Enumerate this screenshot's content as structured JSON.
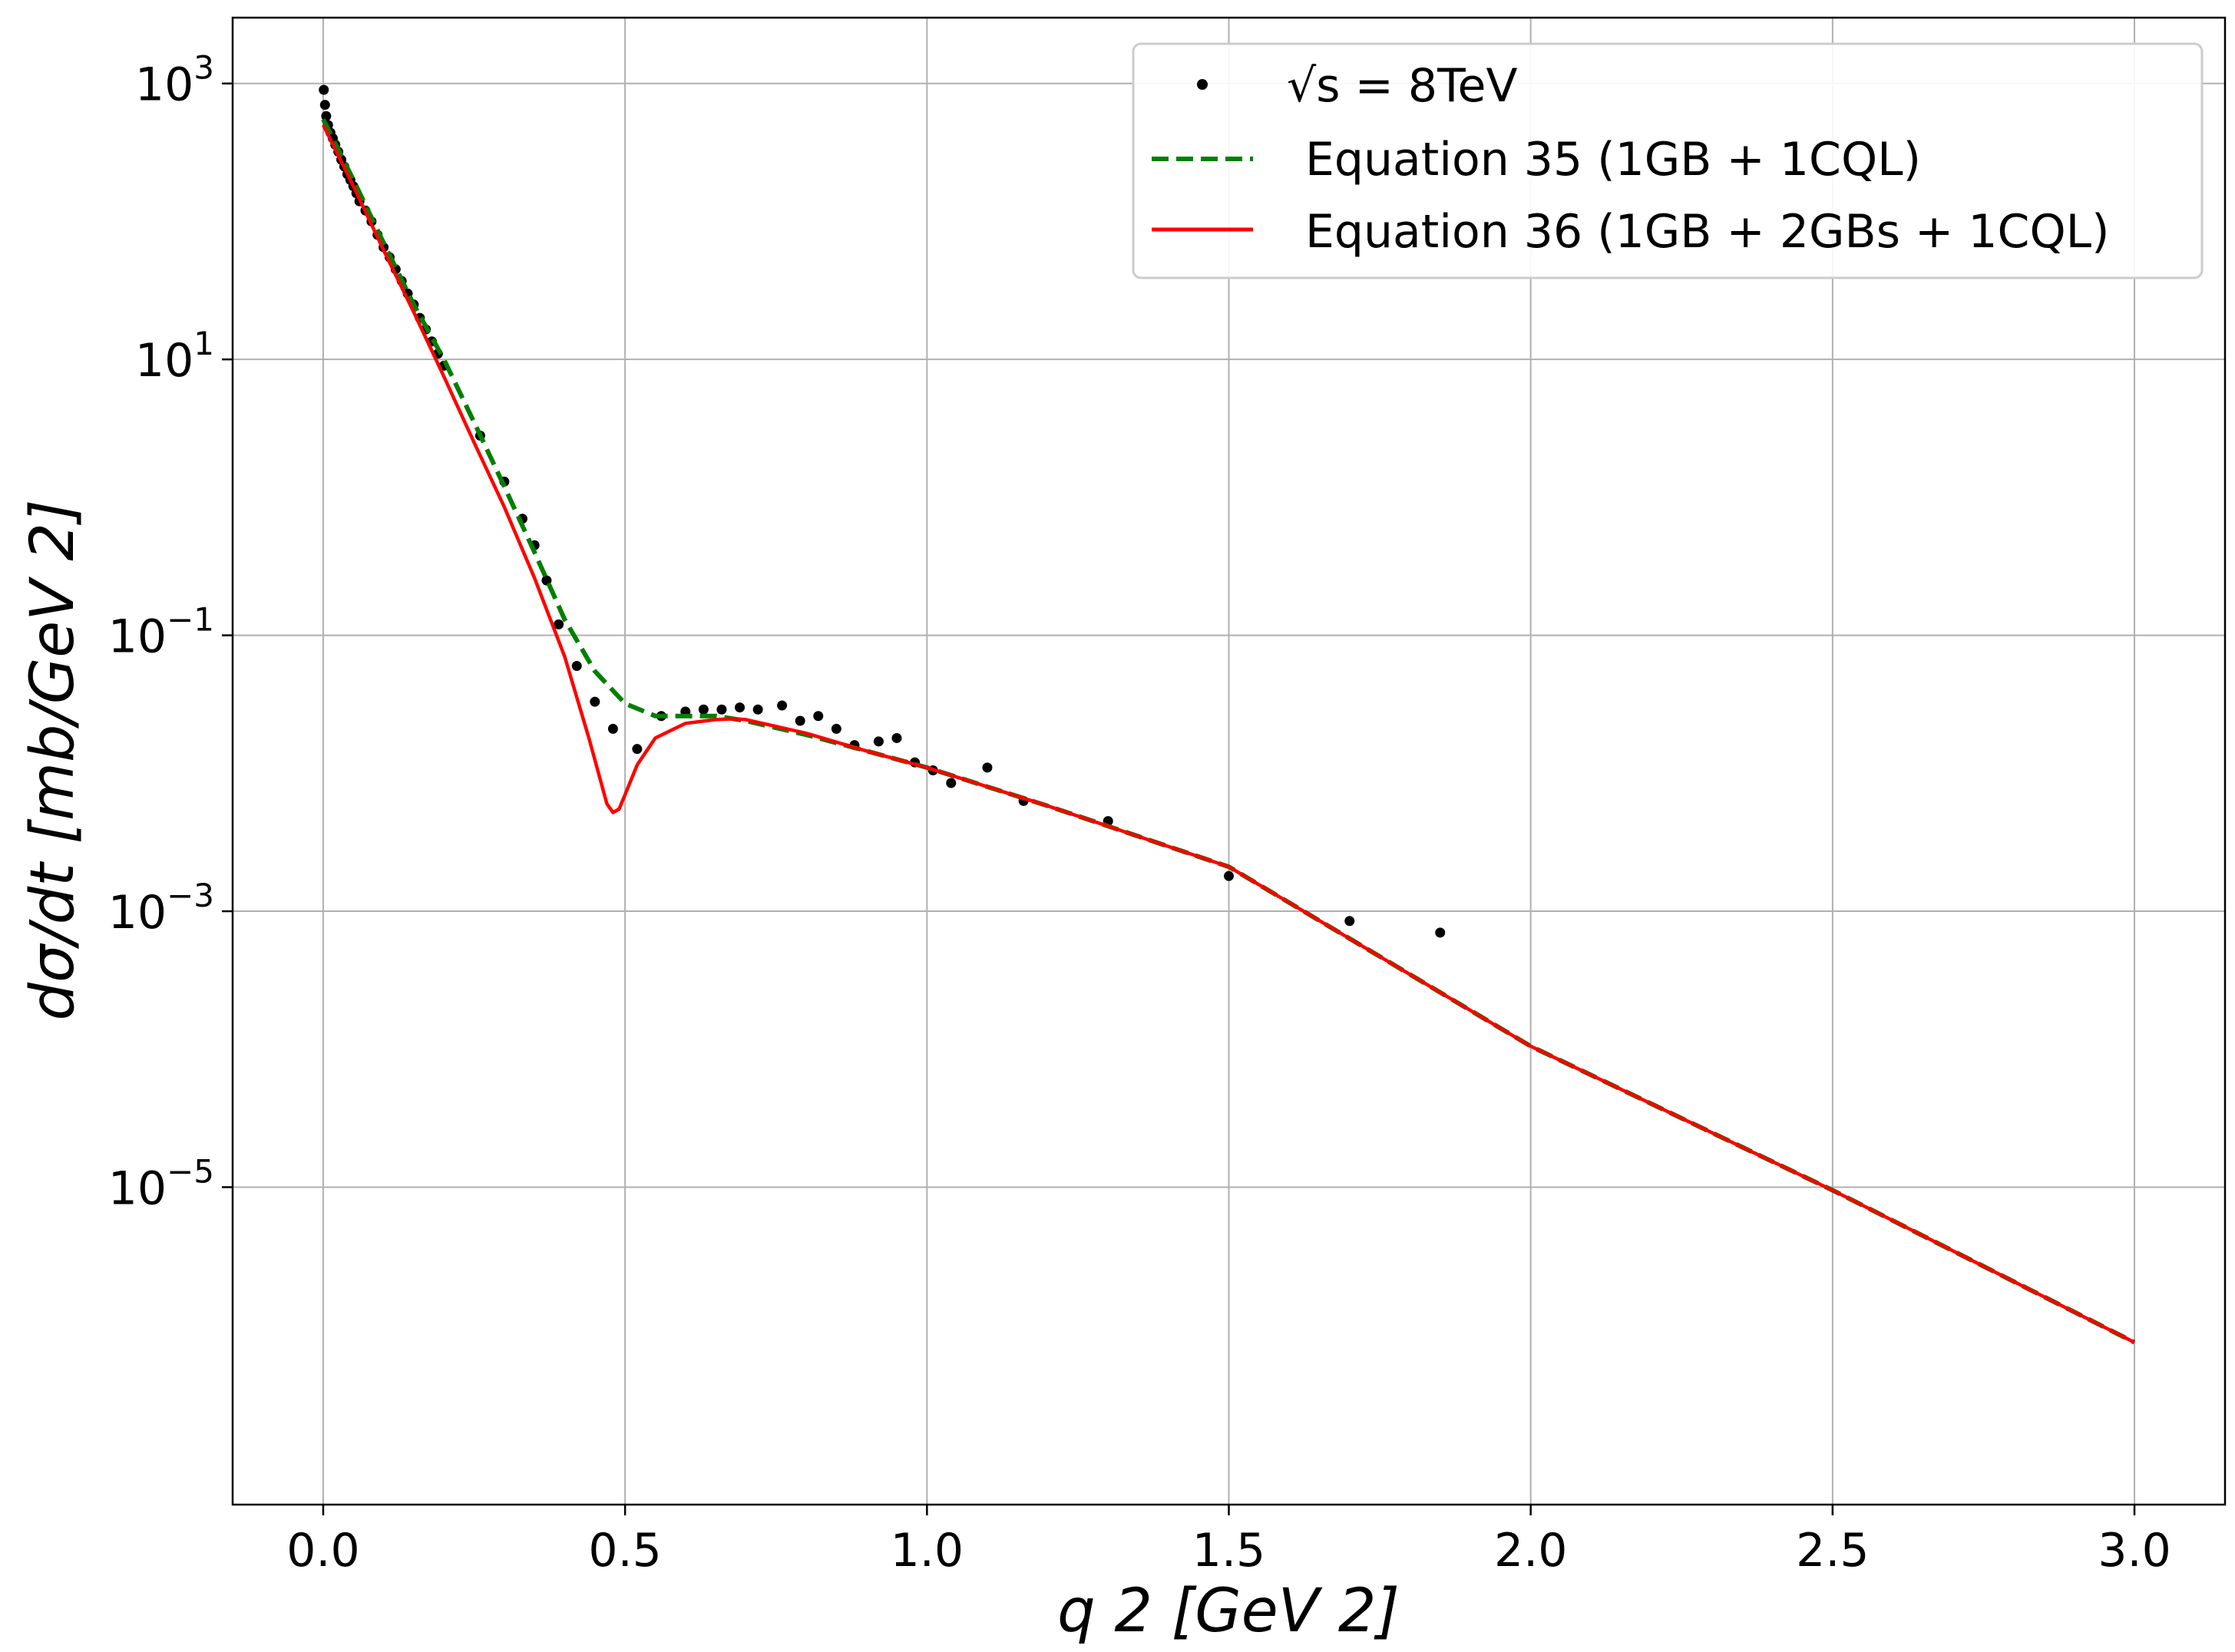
{
  "chart_data": {
    "type": "line",
    "title": "",
    "xlabel": "q 2 [GeV 2]",
    "ylabel": "dσ/dt  [mb/GeV 2]",
    "xscale": "linear",
    "yscale": "log",
    "xlim": [
      -0.15,
      3.15
    ],
    "ylim": [
      5e-08,
      3000
    ],
    "xticks": [
      {
        "value": 0.0,
        "label": "0.0"
      },
      {
        "value": 0.5,
        "label": "0.5"
      },
      {
        "value": 1.0,
        "label": "1.0"
      },
      {
        "value": 1.5,
        "label": "1.5"
      },
      {
        "value": 2.0,
        "label": "2.0"
      },
      {
        "value": 2.5,
        "label": "2.5"
      },
      {
        "value": 3.0,
        "label": "3.0"
      }
    ],
    "yticks": [
      {
        "value": 1000,
        "base": "10",
        "exp": "3"
      },
      {
        "value": 10,
        "base": "10",
        "exp": "1"
      },
      {
        "value": 0.1,
        "base": "10",
        "exp": "−1"
      },
      {
        "value": 0.001,
        "base": "10",
        "exp": "−3"
      },
      {
        "value": 1e-05,
        "base": "10",
        "exp": "−5"
      }
    ],
    "grid": true,
    "legend_position": "top-right",
    "series": [
      {
        "name": "√s = 8TeV",
        "kind": "scatter",
        "color": "#000000",
        "points": [
          [
            0.001,
            900
          ],
          [
            0.003,
            700
          ],
          [
            0.005,
            580
          ],
          [
            0.008,
            500
          ],
          [
            0.012,
            440
          ],
          [
            0.016,
            400
          ],
          [
            0.02,
            360
          ],
          [
            0.025,
            320
          ],
          [
            0.03,
            280
          ],
          [
            0.035,
            250
          ],
          [
            0.04,
            220
          ],
          [
            0.045,
            200
          ],
          [
            0.05,
            180
          ],
          [
            0.055,
            160
          ],
          [
            0.06,
            140
          ],
          [
            0.07,
            120
          ],
          [
            0.08,
            100
          ],
          [
            0.09,
            80
          ],
          [
            0.1,
            65
          ],
          [
            0.11,
            55
          ],
          [
            0.12,
            45
          ],
          [
            0.13,
            37
          ],
          [
            0.14,
            30
          ],
          [
            0.15,
            25
          ],
          [
            0.16,
            20
          ],
          [
            0.17,
            16.5
          ],
          [
            0.18,
            13.5
          ],
          [
            0.19,
            11
          ],
          [
            0.2,
            9
          ],
          [
            0.26,
            2.8
          ],
          [
            0.3,
            1.3
          ],
          [
            0.33,
            0.7
          ],
          [
            0.35,
            0.45
          ],
          [
            0.37,
            0.25
          ],
          [
            0.39,
            0.12
          ],
          [
            0.42,
            0.06
          ],
          [
            0.45,
            0.033
          ],
          [
            0.48,
            0.021
          ],
          [
            0.52,
            0.015
          ],
          [
            0.56,
            0.026
          ],
          [
            0.6,
            0.028
          ],
          [
            0.63,
            0.029
          ],
          [
            0.66,
            0.029
          ],
          [
            0.69,
            0.03
          ],
          [
            0.72,
            0.029
          ],
          [
            0.76,
            0.031
          ],
          [
            0.79,
            0.024
          ],
          [
            0.82,
            0.026
          ],
          [
            0.85,
            0.021
          ],
          [
            0.88,
            0.016
          ],
          [
            0.92,
            0.017
          ],
          [
            0.95,
            0.018
          ],
          [
            0.98,
            0.012
          ],
          [
            1.01,
            0.0105
          ],
          [
            1.04,
            0.0085
          ],
          [
            1.1,
            0.011
          ],
          [
            1.16,
            0.0063
          ],
          [
            1.3,
            0.0045
          ],
          [
            1.5,
            0.0018
          ],
          [
            1.7,
            0.00085
          ],
          [
            1.85,
            0.0007
          ]
        ]
      },
      {
        "name": "Equation 35 (1GB + 1CQL)",
        "kind": "line",
        "style": "dashed",
        "color": "#007f00",
        "points": [
          [
            0.0,
            550
          ],
          [
            0.05,
            200
          ],
          [
            0.1,
            70
          ],
          [
            0.15,
            25
          ],
          [
            0.2,
            10
          ],
          [
            0.25,
            3.5
          ],
          [
            0.3,
            1.2
          ],
          [
            0.35,
            0.4
          ],
          [
            0.4,
            0.13
          ],
          [
            0.45,
            0.055
          ],
          [
            0.5,
            0.032
          ],
          [
            0.55,
            0.026
          ],
          [
            0.6,
            0.026
          ],
          [
            0.65,
            0.026
          ],
          [
            0.7,
            0.024
          ],
          [
            0.8,
            0.019
          ],
          [
            0.9,
            0.0145
          ],
          [
            1.0,
            0.011
          ],
          [
            1.2,
            0.0058
          ],
          [
            1.5,
            0.0021
          ],
          [
            2.0,
            0.000105
          ],
          [
            2.5,
            9.5e-06
          ],
          [
            3.0,
            7.5e-07
          ]
        ]
      },
      {
        "name": "Equation 36 (1GB + 2GBs + 1CQL)",
        "kind": "line",
        "style": "solid",
        "color": "#ff0000",
        "points": [
          [
            0.0,
            500
          ],
          [
            0.05,
            180
          ],
          [
            0.1,
            62
          ],
          [
            0.15,
            22
          ],
          [
            0.2,
            7.5
          ],
          [
            0.25,
            2.5
          ],
          [
            0.3,
            0.85
          ],
          [
            0.35,
            0.26
          ],
          [
            0.4,
            0.07
          ],
          [
            0.44,
            0.018
          ],
          [
            0.47,
            0.006
          ],
          [
            0.48,
            0.0052
          ],
          [
            0.49,
            0.0055
          ],
          [
            0.5,
            0.007
          ],
          [
            0.52,
            0.0115
          ],
          [
            0.55,
            0.018
          ],
          [
            0.6,
            0.023
          ],
          [
            0.65,
            0.0245
          ],
          [
            0.68,
            0.0248
          ],
          [
            0.7,
            0.0245
          ],
          [
            0.8,
            0.0195
          ],
          [
            0.9,
            0.0145
          ],
          [
            1.0,
            0.011
          ],
          [
            1.2,
            0.0058
          ],
          [
            1.5,
            0.0021
          ],
          [
            2.0,
            0.000105
          ],
          [
            2.5,
            9.5e-06
          ],
          [
            3.0,
            7.5e-07
          ]
        ]
      }
    ],
    "legend": [
      {
        "label": "√s = 8TeV"
      },
      {
        "label": "Equation 35 (1GB + 1CQL)"
      },
      {
        "label": "Equation 36 (1GB + 2GBs + 1CQL)"
      }
    ]
  }
}
